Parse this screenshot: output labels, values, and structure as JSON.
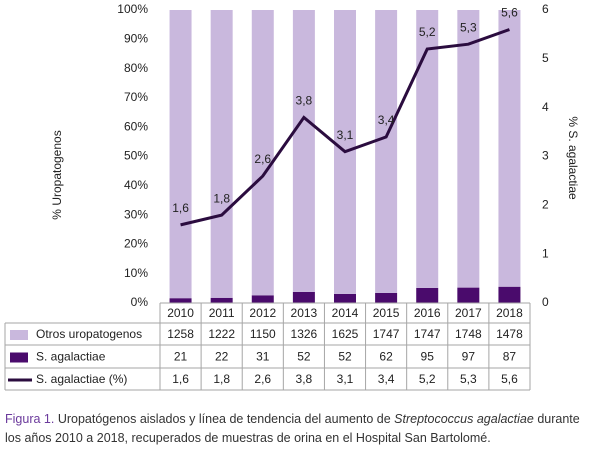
{
  "chart_data": {
    "type": "bar-line",
    "stack": "percent",
    "y_label": "% Uropatogenos",
    "y2_label": "% S. agalactiae",
    "categories": [
      "2010",
      "2011",
      "2012",
      "2013",
      "2014",
      "2015",
      "2016",
      "2017",
      "2018"
    ],
    "series": [
      {
        "name": "Otros uropatogenos",
        "type": "bar",
        "color": "#c9b8dd",
        "values": [
          1258,
          1222,
          1150,
          1326,
          1625,
          1747,
          1747,
          1748,
          1478
        ]
      },
      {
        "name": "S. agalactiae",
        "type": "bar",
        "color": "#4a0b6c",
        "values": [
          21,
          22,
          31,
          52,
          52,
          62,
          95,
          97,
          87
        ]
      },
      {
        "name": "S. agalactiae (%)",
        "type": "line",
        "axis": "y2",
        "color": "#2b0c3f",
        "values": [
          1.6,
          1.8,
          2.6,
          3.8,
          3.1,
          3.4,
          5.2,
          5.3,
          5.6
        ],
        "value_labels": [
          "1,6",
          "1,8",
          "2,6",
          "3,8",
          "3,1",
          "3,4",
          "5,2",
          "5,3",
          "5,6"
        ]
      }
    ],
    "ylim": [
      0,
      100
    ],
    "yticks": [
      {
        "value": 0,
        "label": "0%"
      },
      {
        "value": 10,
        "label": "10%"
      },
      {
        "value": 20,
        "label": "20%"
      },
      {
        "value": 30,
        "label": "30%"
      },
      {
        "value": 40,
        "label": "40%"
      },
      {
        "value": 50,
        "label": "50%"
      },
      {
        "value": 60,
        "label": "60%"
      },
      {
        "value": 70,
        "label": "70%"
      },
      {
        "value": 80,
        "label": "80%"
      },
      {
        "value": 90,
        "label": "90%"
      },
      {
        "value": 100,
        "label": "100%"
      }
    ],
    "y2lim": [
      0,
      6
    ],
    "y2ticks": [
      0,
      1,
      2,
      3,
      4,
      5,
      6
    ],
    "data_table": true
  },
  "caption": {
    "label": "Figura 1.",
    "text_before": " Uropatógenos aislados y línea de tendencia del aumento de ",
    "species": "Streptococcus agalactiae",
    "text_after": " durante los años 2010 a 2018, recuperados de muestras de orina en el Hospital San Bartolomé."
  }
}
